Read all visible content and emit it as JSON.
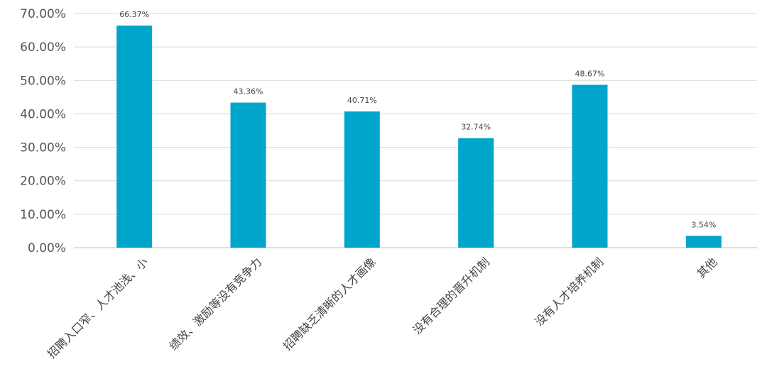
{
  "chart_data": {
    "type": "bar",
    "categories": [
      "招聘入口窄、人才池浅、小",
      "绩效、激励等没有竞争力",
      "招聘缺乏清晰的人才画像",
      "没有合理的晋升机制",
      "没有人才培养机制",
      "其他"
    ],
    "values": [
      66.37,
      43.36,
      40.71,
      32.74,
      48.67,
      3.54
    ],
    "data_labels": [
      "66.37%",
      "43.36%",
      "40.71%",
      "32.74%",
      "48.67%",
      "3.54%"
    ],
    "yticks": [
      "0.00%",
      "10.00%",
      "20.00%",
      "30.00%",
      "40.00%",
      "50.00%",
      "60.00%",
      "70.00%"
    ],
    "ylim": [
      0,
      70
    ],
    "title": "",
    "xlabel": "",
    "ylabel": "",
    "grid": true,
    "bar_color": "#00a5cc"
  }
}
